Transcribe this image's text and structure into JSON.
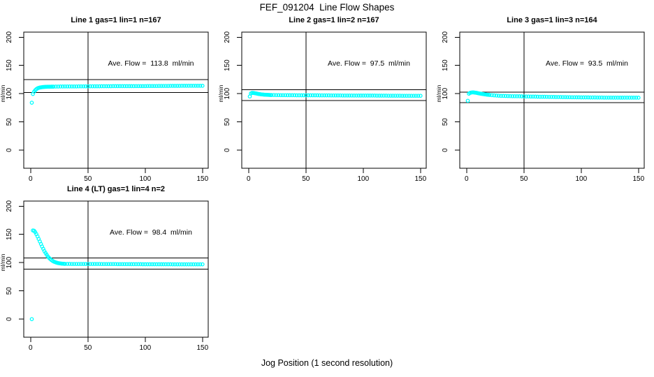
{
  "figure": {
    "title": "FEF_091204  Line Flow Shapes",
    "xlabel": "Jog Position (1 second resolution)"
  },
  "colors": {
    "marker": "#00ffff",
    "axis": "#000000",
    "background": "#ffffff"
  },
  "chart_data": [
    {
      "type": "scatter",
      "title": "Line 1 gas=1 lin=1 n=167",
      "gas": 1,
      "lin": 1,
      "n": 167,
      "ave_flow_ml_min": 113.8,
      "annotation": "Ave. Flow =  113.8  ml/min",
      "ylabel": "ml/min",
      "xticks": [
        0,
        50,
        100,
        150
      ],
      "yticks": [
        0,
        50,
        100,
        150,
        200
      ],
      "xlim": [
        -6,
        155
      ],
      "ylim": [
        -32,
        209
      ],
      "vline_x": 50,
      "hlines": [
        125.2,
        102.4
      ],
      "points": [
        [
          1,
          84
        ],
        [
          2,
          99.5
        ],
        [
          3,
          103.5
        ],
        [
          4,
          106
        ],
        [
          5,
          108
        ],
        [
          6,
          109.5
        ],
        [
          7,
          110.3
        ],
        [
          8,
          110.9
        ],
        [
          9,
          111.3
        ],
        [
          10,
          111.6
        ],
        [
          11,
          111.8
        ],
        [
          12,
          112
        ],
        [
          13,
          112.1
        ],
        [
          14,
          112.2
        ],
        [
          15,
          112.3
        ],
        [
          16,
          112.35
        ],
        [
          17,
          112.4
        ],
        [
          18,
          112.45
        ],
        [
          19,
          112.5
        ],
        [
          20,
          112.5
        ],
        [
          22,
          112.6
        ],
        [
          24,
          112.6
        ],
        [
          26,
          112.7
        ],
        [
          28,
          112.7
        ],
        [
          30,
          112.8
        ],
        [
          32,
          112.8
        ],
        [
          34,
          112.85
        ],
        [
          36,
          112.9
        ],
        [
          38,
          112.9
        ],
        [
          40,
          112.9
        ],
        [
          42,
          113
        ],
        [
          44,
          113
        ],
        [
          46,
          113
        ],
        [
          48,
          113
        ],
        [
          50,
          113
        ],
        [
          52,
          113.1
        ],
        [
          54,
          113.1
        ],
        [
          56,
          113.1
        ],
        [
          58,
          113.1
        ],
        [
          60,
          113.1
        ],
        [
          62,
          113.2
        ],
        [
          64,
          113.2
        ],
        [
          66,
          113.2
        ],
        [
          68,
          113.2
        ],
        [
          70,
          113.2
        ],
        [
          72,
          113.3
        ],
        [
          74,
          113.3
        ],
        [
          76,
          113.3
        ],
        [
          78,
          113.3
        ],
        [
          80,
          113.3
        ],
        [
          82,
          113.4
        ],
        [
          84,
          113.4
        ],
        [
          86,
          113.4
        ],
        [
          88,
          113.4
        ],
        [
          90,
          113.4
        ],
        [
          92,
          113.5
        ],
        [
          94,
          113.5
        ],
        [
          96,
          113.5
        ],
        [
          98,
          113.5
        ],
        [
          100,
          113.5
        ],
        [
          102,
          113.6
        ],
        [
          104,
          113.6
        ],
        [
          106,
          113.6
        ],
        [
          108,
          113.6
        ],
        [
          110,
          113.6
        ],
        [
          112,
          113.7
        ],
        [
          114,
          113.7
        ],
        [
          116,
          113.7
        ],
        [
          118,
          113.7
        ],
        [
          120,
          113.7
        ],
        [
          122,
          113.8
        ],
        [
          124,
          113.8
        ],
        [
          126,
          113.8
        ],
        [
          128,
          113.8
        ],
        [
          130,
          113.8
        ],
        [
          132,
          113.9
        ],
        [
          134,
          113.9
        ],
        [
          136,
          113.9
        ],
        [
          138,
          113.9
        ],
        [
          140,
          113.9
        ],
        [
          142,
          114
        ],
        [
          144,
          114
        ],
        [
          146,
          114
        ],
        [
          148,
          114
        ],
        [
          150,
          114
        ]
      ]
    },
    {
      "type": "scatter",
      "title": "Line 2 gas=1 lin=2 n=167",
      "gas": 1,
      "lin": 2,
      "n": 167,
      "ave_flow_ml_min": 97.5,
      "annotation": "Ave. Flow =  97.5  ml/min",
      "ylabel": "ml/min",
      "xticks": [
        0,
        50,
        100,
        150
      ],
      "yticks": [
        0,
        50,
        100,
        150,
        200
      ],
      "xlim": [
        -6,
        155
      ],
      "ylim": [
        -32,
        209
      ],
      "vline_x": 50,
      "hlines": [
        107.3,
        87.8
      ],
      "points": [
        [
          1,
          95
        ],
        [
          2,
          100.5
        ],
        [
          3,
          101.5
        ],
        [
          4,
          101.3
        ],
        [
          5,
          101
        ],
        [
          6,
          100.6
        ],
        [
          7,
          100.2
        ],
        [
          8,
          99.8
        ],
        [
          9,
          99.4
        ],
        [
          10,
          99.1
        ],
        [
          11,
          98.8
        ],
        [
          12,
          98.6
        ],
        [
          13,
          98.4
        ],
        [
          14,
          98.2
        ],
        [
          15,
          98.1
        ],
        [
          16,
          98
        ],
        [
          17,
          97.9
        ],
        [
          18,
          97.8
        ],
        [
          19,
          97.7
        ],
        [
          20,
          97.7
        ],
        [
          22,
          97.6
        ],
        [
          24,
          97.5
        ],
        [
          26,
          97.5
        ],
        [
          28,
          97.4
        ],
        [
          30,
          97.4
        ],
        [
          32,
          97.4
        ],
        [
          34,
          97.3
        ],
        [
          36,
          97.3
        ],
        [
          38,
          97.3
        ],
        [
          40,
          97.3
        ],
        [
          42,
          97.2
        ],
        [
          44,
          97.2
        ],
        [
          46,
          97.2
        ],
        [
          48,
          97.2
        ],
        [
          50,
          97.2
        ],
        [
          52,
          97.1
        ],
        [
          54,
          97.1
        ],
        [
          56,
          97.1
        ],
        [
          58,
          97.1
        ],
        [
          60,
          97.1
        ],
        [
          62,
          97
        ],
        [
          64,
          97
        ],
        [
          66,
          97
        ],
        [
          68,
          97
        ],
        [
          70,
          97
        ],
        [
          72,
          96.9
        ],
        [
          74,
          96.9
        ],
        [
          76,
          96.9
        ],
        [
          78,
          96.9
        ],
        [
          80,
          96.9
        ],
        [
          82,
          96.8
        ],
        [
          84,
          96.8
        ],
        [
          86,
          96.8
        ],
        [
          88,
          96.8
        ],
        [
          90,
          96.8
        ],
        [
          92,
          96.7
        ],
        [
          94,
          96.7
        ],
        [
          96,
          96.7
        ],
        [
          98,
          96.7
        ],
        [
          100,
          96.7
        ],
        [
          102,
          96.6
        ],
        [
          104,
          96.6
        ],
        [
          106,
          96.6
        ],
        [
          108,
          96.6
        ],
        [
          110,
          96.6
        ],
        [
          112,
          96.5
        ],
        [
          114,
          96.5
        ],
        [
          116,
          96.5
        ],
        [
          118,
          96.5
        ],
        [
          120,
          96.5
        ],
        [
          122,
          96.4
        ],
        [
          124,
          96.4
        ],
        [
          126,
          96.4
        ],
        [
          128,
          96.4
        ],
        [
          130,
          96.4
        ],
        [
          132,
          96.4
        ],
        [
          134,
          96.3
        ],
        [
          136,
          96.3
        ],
        [
          138,
          96.3
        ],
        [
          140,
          96.3
        ],
        [
          142,
          96.3
        ],
        [
          144,
          96.3
        ],
        [
          146,
          96.3
        ],
        [
          148,
          96.3
        ],
        [
          150,
          96.3
        ]
      ]
    },
    {
      "type": "scatter",
      "title": "Line 3 gas=1 lin=3 n=164",
      "gas": 1,
      "lin": 3,
      "n": 164,
      "ave_flow_ml_min": 93.5,
      "annotation": "Ave. Flow =  93.5  ml/min",
      "ylabel": "ml/min",
      "xticks": [
        0,
        50,
        100,
        150
      ],
      "yticks": [
        0,
        50,
        100,
        150,
        200
      ],
      "xlim": [
        -6,
        155
      ],
      "ylim": [
        -32,
        209
      ],
      "vline_x": 50,
      "hlines": [
        102.9,
        84.2
      ],
      "points": [
        [
          1,
          87.5
        ],
        [
          2,
          100
        ],
        [
          3,
          101.5
        ],
        [
          4,
          102
        ],
        [
          5,
          102.3
        ],
        [
          6,
          102.2
        ],
        [
          7,
          102
        ],
        [
          8,
          101.7
        ],
        [
          9,
          101.3
        ],
        [
          10,
          100.9
        ],
        [
          11,
          100.5
        ],
        [
          12,
          100.1
        ],
        [
          13,
          99.7
        ],
        [
          14,
          99.4
        ],
        [
          15,
          99.1
        ],
        [
          16,
          98.8
        ],
        [
          17,
          98.5
        ],
        [
          18,
          98.2
        ],
        [
          19,
          98
        ],
        [
          20,
          97.8
        ],
        [
          22,
          97.4
        ],
        [
          24,
          97
        ],
        [
          26,
          96.7
        ],
        [
          28,
          96.4
        ],
        [
          30,
          96.1
        ],
        [
          32,
          96
        ],
        [
          34,
          95.9
        ],
        [
          36,
          95.8
        ],
        [
          38,
          95.7
        ],
        [
          40,
          95.6
        ],
        [
          42,
          95.5
        ],
        [
          44,
          95.4
        ],
        [
          46,
          95.4
        ],
        [
          48,
          95.3
        ],
        [
          50,
          95.2
        ],
        [
          52,
          95.1
        ],
        [
          54,
          95
        ],
        [
          56,
          94.9
        ],
        [
          58,
          94.9
        ],
        [
          60,
          94.8
        ],
        [
          62,
          94.7
        ],
        [
          64,
          94.6
        ],
        [
          66,
          94.6
        ],
        [
          68,
          94.5
        ],
        [
          70,
          94.4
        ],
        [
          72,
          94.3
        ],
        [
          74,
          94.3
        ],
        [
          76,
          94.2
        ],
        [
          78,
          94.1
        ],
        [
          80,
          94.1
        ],
        [
          82,
          94
        ],
        [
          84,
          93.9
        ],
        [
          86,
          93.9
        ],
        [
          88,
          93.8
        ],
        [
          90,
          93.8
        ],
        [
          92,
          93.7
        ],
        [
          94,
          93.7
        ],
        [
          96,
          93.6
        ],
        [
          98,
          93.6
        ],
        [
          100,
          93.5
        ],
        [
          102,
          93.5
        ],
        [
          104,
          93.4
        ],
        [
          106,
          93.4
        ],
        [
          108,
          93.3
        ],
        [
          110,
          93.3
        ],
        [
          112,
          93.3
        ],
        [
          114,
          93.2
        ],
        [
          116,
          93.2
        ],
        [
          118,
          93.2
        ],
        [
          120,
          93.1
        ],
        [
          122,
          93.1
        ],
        [
          124,
          93.1
        ],
        [
          126,
          93.1
        ],
        [
          128,
          93
        ],
        [
          130,
          93
        ],
        [
          132,
          93
        ],
        [
          134,
          93
        ],
        [
          136,
          93
        ],
        [
          138,
          92.9
        ],
        [
          140,
          92.9
        ],
        [
          142,
          92.9
        ],
        [
          144,
          92.9
        ],
        [
          146,
          92.9
        ],
        [
          148,
          92.9
        ],
        [
          150,
          92.9
        ]
      ]
    },
    {
      "type": "scatter",
      "title": "Line 4 (LT) gas=1 lin=4 n=2",
      "gas": 1,
      "lin": 4,
      "n": 2,
      "ave_flow_ml_min": 98.4,
      "annotation": "Ave. Flow =  98.4  ml/min",
      "ylabel": "ml/min",
      "xticks": [
        0,
        50,
        100,
        150
      ],
      "yticks": [
        0,
        50,
        100,
        150,
        200
      ],
      "xlim": [
        -6,
        155
      ],
      "ylim": [
        -32,
        209
      ],
      "vline_x": 50,
      "hlines": [
        108.2,
        88.6
      ],
      "points": [
        [
          1,
          0
        ],
        [
          2,
          157
        ],
        [
          3,
          156.5
        ],
        [
          4,
          154
        ],
        [
          5,
          150.5
        ],
        [
          6,
          146.5
        ],
        [
          7,
          142
        ],
        [
          8,
          137.5
        ],
        [
          9,
          133
        ],
        [
          10,
          128.5
        ],
        [
          11,
          124.5
        ],
        [
          12,
          120.5
        ],
        [
          13,
          117
        ],
        [
          14,
          114
        ],
        [
          15,
          111
        ],
        [
          16,
          108.5
        ],
        [
          17,
          106.5
        ],
        [
          18,
          104.8
        ],
        [
          19,
          103.3
        ],
        [
          20,
          102.1
        ],
        [
          21,
          101.2
        ],
        [
          22,
          100.4
        ],
        [
          23,
          99.8
        ],
        [
          24,
          99.3
        ],
        [
          25,
          98.9
        ],
        [
          26,
          98.6
        ],
        [
          27,
          98.3
        ],
        [
          28,
          98.1
        ],
        [
          29,
          97.9
        ],
        [
          30,
          97.8
        ],
        [
          32,
          97.8
        ],
        [
          34,
          97.8
        ],
        [
          36,
          97.7
        ],
        [
          38,
          97.7
        ],
        [
          40,
          97.7
        ],
        [
          42,
          97.7
        ],
        [
          44,
          97.7
        ],
        [
          46,
          97.7
        ],
        [
          48,
          97.7
        ],
        [
          50,
          97.7
        ],
        [
          52,
          97.6
        ],
        [
          54,
          97.6
        ],
        [
          56,
          97.6
        ],
        [
          58,
          97.6
        ],
        [
          60,
          97.6
        ],
        [
          62,
          97.5
        ],
        [
          64,
          97.5
        ],
        [
          66,
          97.5
        ],
        [
          68,
          97.5
        ],
        [
          70,
          97.5
        ],
        [
          72,
          97.5
        ],
        [
          74,
          97.5
        ],
        [
          76,
          97.4
        ],
        [
          78,
          97.4
        ],
        [
          80,
          97.4
        ],
        [
          82,
          97.4
        ],
        [
          84,
          97.4
        ],
        [
          86,
          97.4
        ],
        [
          88,
          97.3
        ],
        [
          90,
          97.3
        ],
        [
          92,
          97.3
        ],
        [
          94,
          97.3
        ],
        [
          96,
          97.3
        ],
        [
          98,
          97.2
        ],
        [
          100,
          97.2
        ],
        [
          102,
          97.2
        ],
        [
          104,
          97.2
        ],
        [
          106,
          97.2
        ],
        [
          108,
          97.2
        ],
        [
          110,
          97.1
        ],
        [
          112,
          97.1
        ],
        [
          114,
          97.1
        ],
        [
          116,
          97.1
        ],
        [
          118,
          97.1
        ],
        [
          120,
          97.1
        ],
        [
          122,
          97.1
        ],
        [
          124,
          97
        ],
        [
          126,
          97
        ],
        [
          128,
          97
        ],
        [
          130,
          97
        ],
        [
          132,
          97
        ],
        [
          134,
          97
        ],
        [
          136,
          97
        ],
        [
          138,
          97
        ],
        [
          140,
          97
        ],
        [
          142,
          97
        ],
        [
          144,
          97
        ],
        [
          146,
          97
        ],
        [
          148,
          97
        ],
        [
          150,
          97
        ]
      ]
    }
  ]
}
